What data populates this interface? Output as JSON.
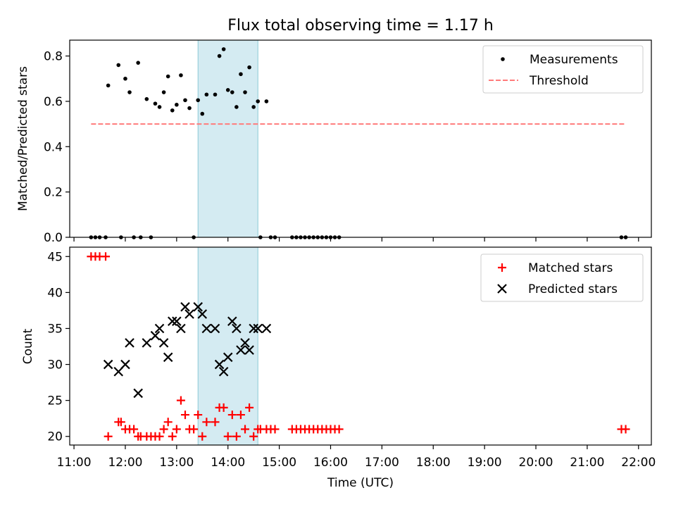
{
  "title": "Flux total observing time = 1.17 h",
  "chart_data": [
    {
      "type": "scatter",
      "ylabel": "Matched/Predicted stars",
      "xlabel": "",
      "xlim": [
        "10:55",
        "22:15"
      ],
      "ylim": [
        0,
        0.87
      ],
      "yticks": [
        "0.0",
        "0.2",
        "0.4",
        "0.6",
        "0.8"
      ],
      "grid": false,
      "legend_position": "top-right",
      "shaded_interval": {
        "start": "13:25",
        "end": "14:35",
        "color": "#add8e6"
      },
      "series": [
        {
          "name": "Measurements",
          "marker": "dot",
          "color": "#000000",
          "points": [
            [
              "11:20",
              0
            ],
            [
              "11:25",
              0
            ],
            [
              "11:30",
              0
            ],
            [
              "11:37",
              0
            ],
            [
              "11:40",
              0.67
            ],
            [
              "11:52",
              0.76
            ],
            [
              "11:55",
              0
            ],
            [
              "12:00",
              0.7
            ],
            [
              "12:05",
              0.64
            ],
            [
              "12:10",
              0
            ],
            [
              "12:15",
              0.77
            ],
            [
              "12:18",
              0
            ],
            [
              "12:25",
              0.61
            ],
            [
              "12:30",
              0
            ],
            [
              "12:35",
              0.59
            ],
            [
              "12:40",
              0.575
            ],
            [
              "12:45",
              0.64
            ],
            [
              "12:50",
              0.71
            ],
            [
              "12:55",
              0.56
            ],
            [
              "13:00",
              0.585
            ],
            [
              "13:05",
              0.715
            ],
            [
              "13:10",
              0.605
            ],
            [
              "13:15",
              0.57
            ],
            [
              "13:20",
              0
            ],
            [
              "13:25",
              0.605
            ],
            [
              "13:30",
              0.545
            ],
            [
              "13:35",
              0.63
            ],
            [
              "13:45",
              0.63
            ],
            [
              "13:50",
              0.8
            ],
            [
              "13:55",
              0.83
            ],
            [
              "14:00",
              0.65
            ],
            [
              "14:05",
              0.64
            ],
            [
              "14:10",
              0.575
            ],
            [
              "14:15",
              0.72
            ],
            [
              "14:20",
              0.64
            ],
            [
              "14:25",
              0.75
            ],
            [
              "14:30",
              0.575
            ],
            [
              "14:35",
              0.6
            ],
            [
              "14:38",
              0
            ],
            [
              "14:45",
              0.6
            ],
            [
              "14:50",
              0
            ],
            [
              "14:55",
              0
            ],
            [
              "15:15",
              0
            ],
            [
              "15:20",
              0
            ],
            [
              "15:25",
              0
            ],
            [
              "15:30",
              0
            ],
            [
              "15:35",
              0
            ],
            [
              "15:40",
              0
            ],
            [
              "15:45",
              0
            ],
            [
              "15:50",
              0
            ],
            [
              "15:55",
              0
            ],
            [
              "16:00",
              0
            ],
            [
              "16:05",
              0
            ],
            [
              "16:10",
              0
            ],
            [
              "21:40",
              0
            ],
            [
              "21:45",
              0
            ]
          ]
        },
        {
          "name": "Threshold",
          "style": "dashed-line",
          "color": "#ff7b7b",
          "points": [
            [
              "11:20",
              0.5
            ],
            [
              "21:45",
              0.5
            ]
          ]
        }
      ]
    },
    {
      "type": "scatter",
      "ylabel": "Count",
      "xlabel": "Time (UTC)",
      "xlim": [
        "10:55",
        "22:15"
      ],
      "ylim": [
        18.8,
        46.3
      ],
      "yticks": [
        "20",
        "25",
        "30",
        "35",
        "40",
        "45"
      ],
      "xticks": [
        "11:00",
        "12:00",
        "13:00",
        "14:00",
        "15:00",
        "16:00",
        "17:00",
        "18:00",
        "19:00",
        "20:00",
        "21:00",
        "22:00"
      ],
      "grid": false,
      "legend_position": "top-right",
      "shaded_interval": {
        "start": "13:25",
        "end": "14:35",
        "color": "#add8e6"
      },
      "series": [
        {
          "name": "Matched stars",
          "marker": "plus",
          "color": "#ff0000",
          "points": [
            [
              "11:20",
              45
            ],
            [
              "11:25",
              45
            ],
            [
              "11:30",
              45
            ],
            [
              "11:37",
              45
            ],
            [
              "11:40",
              20
            ],
            [
              "11:52",
              22
            ],
            [
              "11:55",
              22
            ],
            [
              "12:00",
              21
            ],
            [
              "12:05",
              21
            ],
            [
              "12:10",
              21
            ],
            [
              "12:15",
              20
            ],
            [
              "12:18",
              20
            ],
            [
              "12:25",
              20
            ],
            [
              "12:30",
              20
            ],
            [
              "12:35",
              20
            ],
            [
              "12:40",
              20
            ],
            [
              "12:45",
              21
            ],
            [
              "12:50",
              22
            ],
            [
              "12:55",
              20
            ],
            [
              "13:00",
              21
            ],
            [
              "13:05",
              25
            ],
            [
              "13:10",
              23
            ],
            [
              "13:15",
              21
            ],
            [
              "13:20",
              21
            ],
            [
              "13:25",
              23
            ],
            [
              "13:30",
              20
            ],
            [
              "13:35",
              22
            ],
            [
              "13:45",
              22
            ],
            [
              "13:50",
              24
            ],
            [
              "13:55",
              24
            ],
            [
              "14:00",
              20
            ],
            [
              "14:05",
              23
            ],
            [
              "14:10",
              20
            ],
            [
              "14:15",
              23
            ],
            [
              "14:20",
              21
            ],
            [
              "14:25",
              24
            ],
            [
              "14:30",
              20
            ],
            [
              "14:35",
              21
            ],
            [
              "14:38",
              21
            ],
            [
              "14:45",
              21
            ],
            [
              "14:50",
              21
            ],
            [
              "14:55",
              21
            ],
            [
              "15:15",
              21
            ],
            [
              "15:20",
              21
            ],
            [
              "15:25",
              21
            ],
            [
              "15:30",
              21
            ],
            [
              "15:35",
              21
            ],
            [
              "15:40",
              21
            ],
            [
              "15:45",
              21
            ],
            [
              "15:50",
              21
            ],
            [
              "15:55",
              21
            ],
            [
              "16:00",
              21
            ],
            [
              "16:05",
              21
            ],
            [
              "16:10",
              21
            ],
            [
              "21:40",
              21
            ],
            [
              "21:45",
              21
            ]
          ]
        },
        {
          "name": "Predicted stars",
          "marker": "x",
          "color": "#000000",
          "points": [
            [
              "11:40",
              30
            ],
            [
              "11:52",
              29
            ],
            [
              "12:00",
              30
            ],
            [
              "12:05",
              33
            ],
            [
              "12:15",
              26
            ],
            [
              "12:25",
              33
            ],
            [
              "12:35",
              34
            ],
            [
              "12:40",
              35
            ],
            [
              "12:45",
              33
            ],
            [
              "12:50",
              31
            ],
            [
              "12:55",
              36
            ],
            [
              "13:00",
              36
            ],
            [
              "13:05",
              35
            ],
            [
              "13:10",
              38
            ],
            [
              "13:15",
              37
            ],
            [
              "13:25",
              38
            ],
            [
              "13:30",
              37
            ],
            [
              "13:35",
              35
            ],
            [
              "13:45",
              35
            ],
            [
              "13:50",
              30
            ],
            [
              "13:55",
              29
            ],
            [
              "14:00",
              31
            ],
            [
              "14:05",
              36
            ],
            [
              "14:10",
              35
            ],
            [
              "14:15",
              32
            ],
            [
              "14:20",
              33
            ],
            [
              "14:25",
              32
            ],
            [
              "14:30",
              35
            ],
            [
              "14:35",
              35
            ],
            [
              "14:45",
              35
            ]
          ]
        }
      ]
    }
  ]
}
